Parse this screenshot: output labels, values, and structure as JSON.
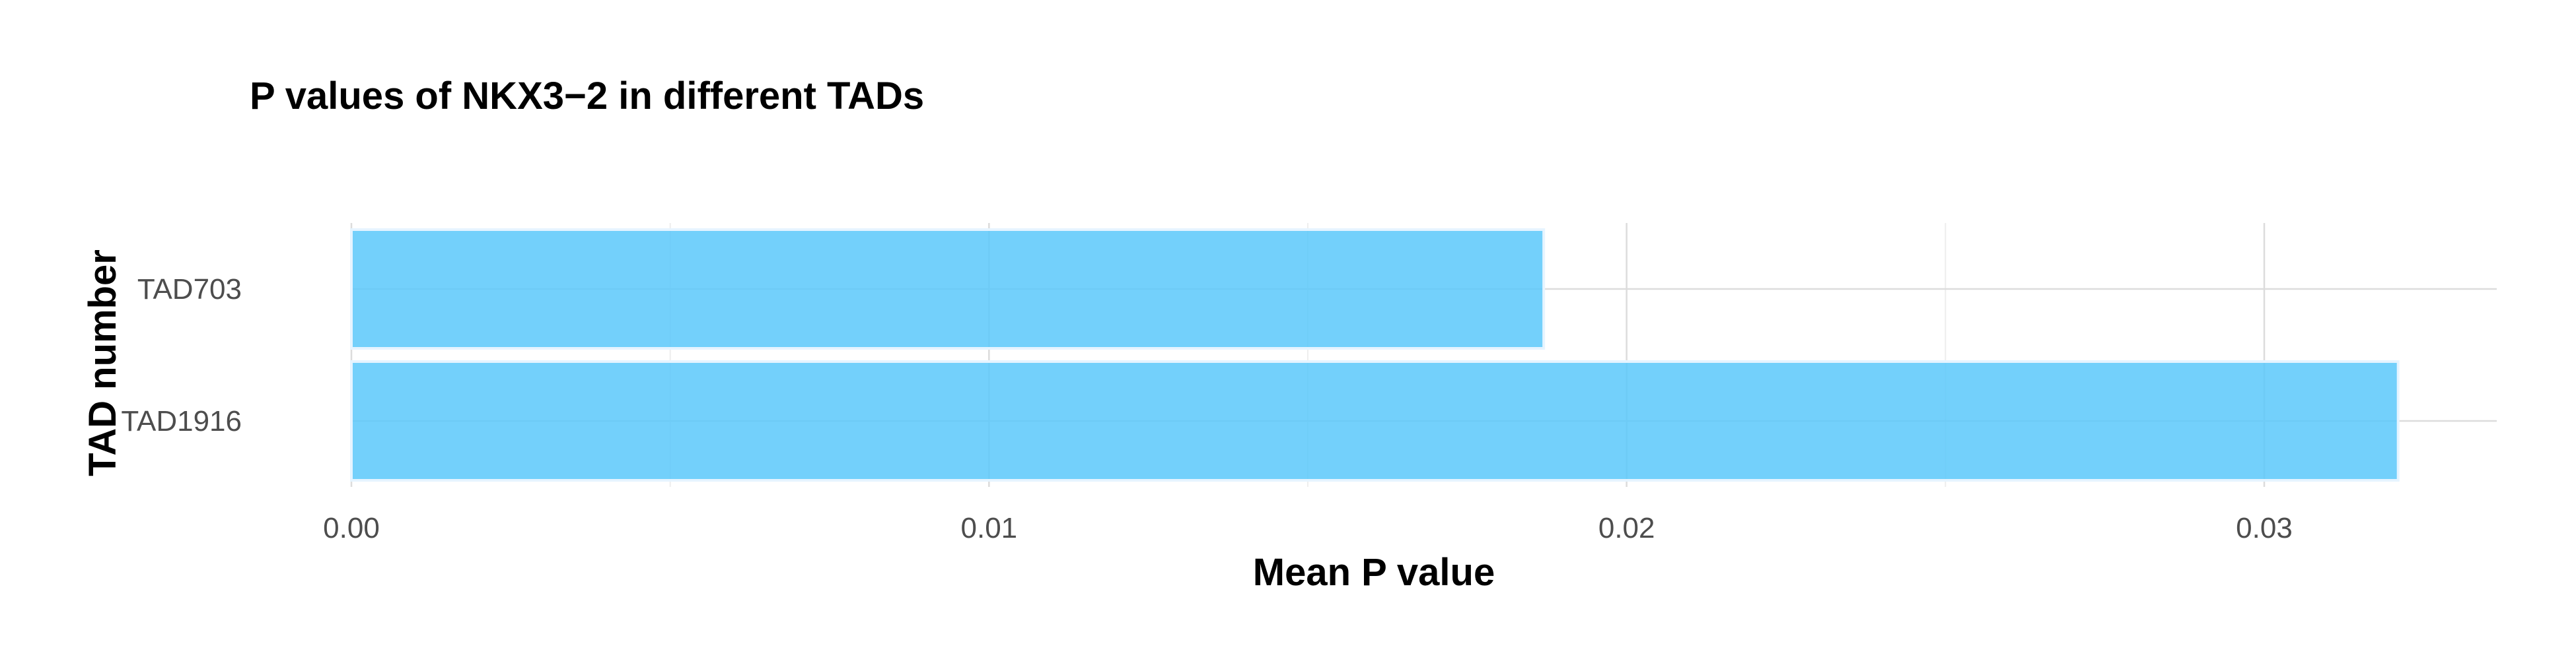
{
  "chart_data": {
    "type": "bar",
    "orientation": "horizontal",
    "title": "P values of NKX3−2 in different TADs",
    "xlabel": "Mean P value",
    "ylabel": "TAD number",
    "categories": [
      "TAD703",
      "TAD1916"
    ],
    "values": [
      0.0187,
      0.0321
    ],
    "xlim": [
      0,
      0.0338
    ],
    "xticks": [
      0.0,
      0.01,
      0.02,
      0.03
    ],
    "xtick_labels": [
      "0.00",
      "0.01",
      "0.02",
      "0.03"
    ],
    "grid": true,
    "legend": false,
    "bar_color": "#5ac8fa"
  }
}
